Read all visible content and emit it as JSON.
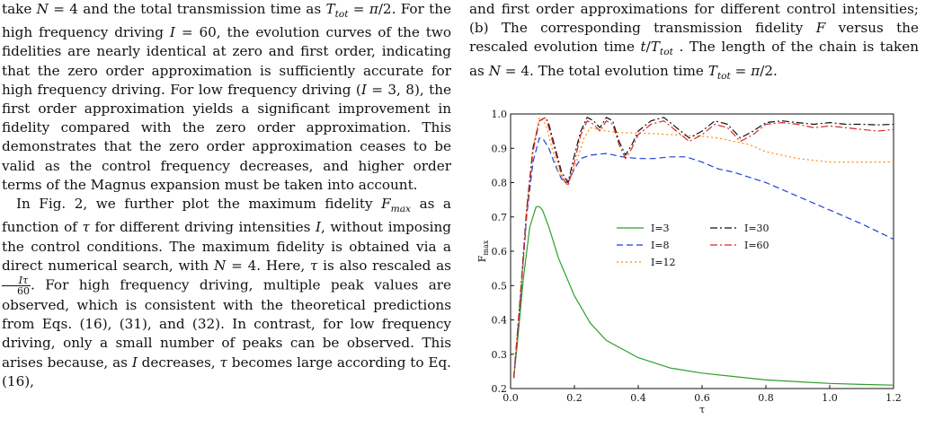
{
  "left_column": {
    "p1": [
      {
        "t": "take "
      },
      {
        "m": "N"
      },
      {
        "t": " = 4 and the total transmission time as "
      },
      {
        "m": "T"
      },
      {
        "sub": "tot"
      },
      {
        "t": " = "
      },
      {
        "m": "π"
      },
      {
        "t": "/2.  For the high frequency driving "
      },
      {
        "m": "I"
      },
      {
        "t": " = 60, the evolution curves of the two fidelities are nearly identical at zero and first order, indicating that the zero order approximation is sufficiently accurate for high frequency driving. For low frequency driving ("
      },
      {
        "m": "I"
      },
      {
        "t": " = 3, 8), the first order approximation yields a significant improvement in fidelity compared with the zero order approximation. This demonstrates that the zero order approximation ceases to be valid as the control frequency decreases, and higher order terms of the Magnus expansion must be taken into account."
      }
    ],
    "p2": [
      {
        "t": "In Fig. 2, we further plot the maximum fidelity "
      },
      {
        "m": "F"
      },
      {
        "sub": "max"
      },
      {
        "t": " as a function of "
      },
      {
        "m": "τ"
      },
      {
        "t": " for different driving intensities "
      },
      {
        "m": "I"
      },
      {
        "t": ", without imposing the control conditions. The maximum fidelity is obtained via a direct numerical search, with "
      },
      {
        "m": "N"
      },
      {
        "t": " = 4. Here, "
      },
      {
        "m": "τ"
      },
      {
        "t": " is also rescaled as "
      },
      {
        "frac": [
          "Iτ",
          "60"
        ]
      },
      {
        "t": ". For high frequency driving, multiple peak values are observed, which is consistent with the theoretical predictions from Eqs. (16), (31), and (32). In contrast, for low frequency driving, only a small number of peaks can be observed. This arises because, as "
      },
      {
        "m": "I"
      },
      {
        "t": " decreases, "
      },
      {
        "m": "τ"
      },
      {
        "t": " becomes large according to Eq. (16),"
      }
    ]
  },
  "right_column": {
    "caption": [
      {
        "t": "and first order approximations for different control intensities; (b) The corresponding transmission fidelity "
      },
      {
        "m": "F"
      },
      {
        "t": " versus the rescaled evolution time "
      },
      {
        "m": "t"
      },
      {
        "t": "/"
      },
      {
        "m": "T"
      },
      {
        "sub": "tot"
      },
      {
        "t": " . The length of the chain is taken as "
      },
      {
        "m": "N"
      },
      {
        "t": " = 4. The total evolution time "
      },
      {
        "m": "T"
      },
      {
        "sub": "tot"
      },
      {
        "t": " = "
      },
      {
        "m": "π"
      },
      {
        "t": "/2."
      }
    ]
  },
  "chart_data": {
    "type": "line",
    "title": "",
    "xlabel": "τ",
    "ylabel": "F_max",
    "xlim": [
      0.0,
      1.2
    ],
    "ylim": [
      0.2,
      1.0
    ],
    "xticks": [
      "0.0",
      "0.2",
      "0.4",
      "0.6",
      "0.8",
      "1.0",
      "1.2"
    ],
    "yticks": [
      "0.2",
      "0.3",
      "0.4",
      "0.5",
      "0.6",
      "0.7",
      "0.8",
      "0.9",
      "1.0"
    ],
    "grid": false,
    "legend_placement": "center-right",
    "series": [
      {
        "name": "I=3",
        "color": "#2ca02c",
        "dash": "solid",
        "x": [
          0.01,
          0.02,
          0.04,
          0.06,
          0.08,
          0.09,
          0.1,
          0.12,
          0.15,
          0.2,
          0.25,
          0.3,
          0.4,
          0.5,
          0.6,
          0.7,
          0.8,
          0.9,
          1.0,
          1.1,
          1.2
        ],
        "y": [
          0.23,
          0.32,
          0.52,
          0.67,
          0.73,
          0.73,
          0.72,
          0.67,
          0.58,
          0.47,
          0.39,
          0.34,
          0.29,
          0.26,
          0.245,
          0.235,
          0.225,
          0.22,
          0.215,
          0.212,
          0.21
        ]
      },
      {
        "name": "I=8",
        "color": "#1f3fd6",
        "dash": "7,4",
        "x": [
          0.01,
          0.03,
          0.05,
          0.07,
          0.09,
          0.1,
          0.12,
          0.14,
          0.16,
          0.18,
          0.2,
          0.22,
          0.25,
          0.3,
          0.35,
          0.4,
          0.45,
          0.5,
          0.55,
          0.6,
          0.65,
          0.7,
          0.8,
          0.9,
          1.0,
          1.1,
          1.2
        ],
        "y": [
          0.23,
          0.45,
          0.7,
          0.86,
          0.93,
          0.93,
          0.9,
          0.85,
          0.81,
          0.8,
          0.84,
          0.87,
          0.88,
          0.885,
          0.875,
          0.87,
          0.87,
          0.875,
          0.875,
          0.86,
          0.84,
          0.83,
          0.8,
          0.76,
          0.72,
          0.68,
          0.635
        ]
      },
      {
        "name": "I=12",
        "color": "#ff8c00",
        "dash": "2,3",
        "x": [
          0.01,
          0.03,
          0.05,
          0.07,
          0.09,
          0.11,
          0.13,
          0.15,
          0.17,
          0.19,
          0.21,
          0.23,
          0.25,
          0.3,
          0.35,
          0.4,
          0.5,
          0.6,
          0.65,
          0.7,
          0.75,
          0.8,
          0.9,
          1.0,
          1.1,
          1.2
        ],
        "y": [
          0.23,
          0.46,
          0.72,
          0.9,
          0.99,
          0.97,
          0.9,
          0.83,
          0.8,
          0.82,
          0.87,
          0.93,
          0.96,
          0.95,
          0.945,
          0.945,
          0.94,
          0.935,
          0.93,
          0.92,
          0.91,
          0.89,
          0.87,
          0.86,
          0.86,
          0.86
        ]
      },
      {
        "name": "I=30",
        "color": "#111111",
        "dash": "8,3,2,3",
        "x": [
          0.01,
          0.03,
          0.05,
          0.07,
          0.09,
          0.11,
          0.12,
          0.14,
          0.16,
          0.18,
          0.2,
          0.22,
          0.24,
          0.26,
          0.28,
          0.3,
          0.32,
          0.34,
          0.36,
          0.38,
          0.4,
          0.44,
          0.48,
          0.52,
          0.56,
          0.6,
          0.64,
          0.68,
          0.72,
          0.76,
          0.8,
          0.85,
          0.9,
          0.95,
          1.0,
          1.05,
          1.1,
          1.15,
          1.2
        ],
        "y": [
          0.23,
          0.46,
          0.72,
          0.9,
          0.98,
          0.99,
          0.97,
          0.9,
          0.83,
          0.8,
          0.88,
          0.95,
          0.99,
          0.98,
          0.96,
          0.99,
          0.98,
          0.92,
          0.88,
          0.91,
          0.95,
          0.98,
          0.99,
          0.96,
          0.93,
          0.95,
          0.98,
          0.97,
          0.93,
          0.95,
          0.975,
          0.98,
          0.975,
          0.97,
          0.975,
          0.97,
          0.97,
          0.968,
          0.97
        ]
      },
      {
        "name": "I=60",
        "color": "#d62728",
        "dash": "8,3,2,3",
        "x": [
          0.01,
          0.03,
          0.05,
          0.07,
          0.09,
          0.11,
          0.12,
          0.14,
          0.16,
          0.18,
          0.2,
          0.22,
          0.24,
          0.26,
          0.28,
          0.3,
          0.32,
          0.34,
          0.36,
          0.38,
          0.4,
          0.44,
          0.48,
          0.52,
          0.56,
          0.6,
          0.64,
          0.68,
          0.72,
          0.76,
          0.8,
          0.85,
          0.9,
          0.95,
          1.0,
          1.05,
          1.1,
          1.15,
          1.2
        ],
        "y": [
          0.23,
          0.45,
          0.71,
          0.89,
          0.98,
          0.99,
          0.96,
          0.89,
          0.82,
          0.79,
          0.86,
          0.94,
          0.98,
          0.97,
          0.95,
          0.98,
          0.97,
          0.91,
          0.87,
          0.9,
          0.94,
          0.97,
          0.98,
          0.95,
          0.92,
          0.94,
          0.97,
          0.96,
          0.92,
          0.94,
          0.97,
          0.975,
          0.97,
          0.96,
          0.965,
          0.96,
          0.955,
          0.95,
          0.955
        ]
      }
    ]
  }
}
